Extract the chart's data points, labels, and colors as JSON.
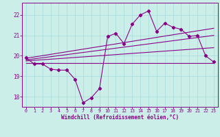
{
  "xlabel": "Windchill (Refroidissement éolien,°C)",
  "bg_color": "#cceee8",
  "grid_color": "#aadddd",
  "line_color": "#880088",
  "spine_color": "#880088",
  "xlim": [
    -0.5,
    23.5
  ],
  "ylim": [
    17.5,
    22.6
  ],
  "xticks": [
    0,
    1,
    2,
    3,
    4,
    5,
    6,
    7,
    8,
    9,
    10,
    11,
    12,
    13,
    14,
    15,
    16,
    17,
    18,
    19,
    20,
    21,
    22,
    23
  ],
  "yticks": [
    18,
    19,
    20,
    21,
    22
  ],
  "main_x": [
    0,
    1,
    2,
    3,
    4,
    5,
    6,
    7,
    8,
    9,
    10,
    11,
    12,
    13,
    14,
    15,
    16,
    17,
    18,
    19,
    20,
    21,
    22,
    23
  ],
  "main_y": [
    19.9,
    19.6,
    19.6,
    19.35,
    19.3,
    19.3,
    18.85,
    17.7,
    17.95,
    18.4,
    20.95,
    21.1,
    20.6,
    21.55,
    22.0,
    22.2,
    21.2,
    21.6,
    21.4,
    21.3,
    20.95,
    21.0,
    20.0,
    19.7
  ],
  "tline1_x": [
    0,
    23
  ],
  "tline1_y": [
    19.65,
    19.65
  ],
  "tline2_x": [
    0,
    23
  ],
  "tline2_y": [
    19.8,
    21.0
  ],
  "tline3_x": [
    0,
    23
  ],
  "tline3_y": [
    19.75,
    20.4
  ],
  "tline4_x": [
    0,
    23
  ],
  "tline4_y": [
    19.88,
    21.35
  ]
}
